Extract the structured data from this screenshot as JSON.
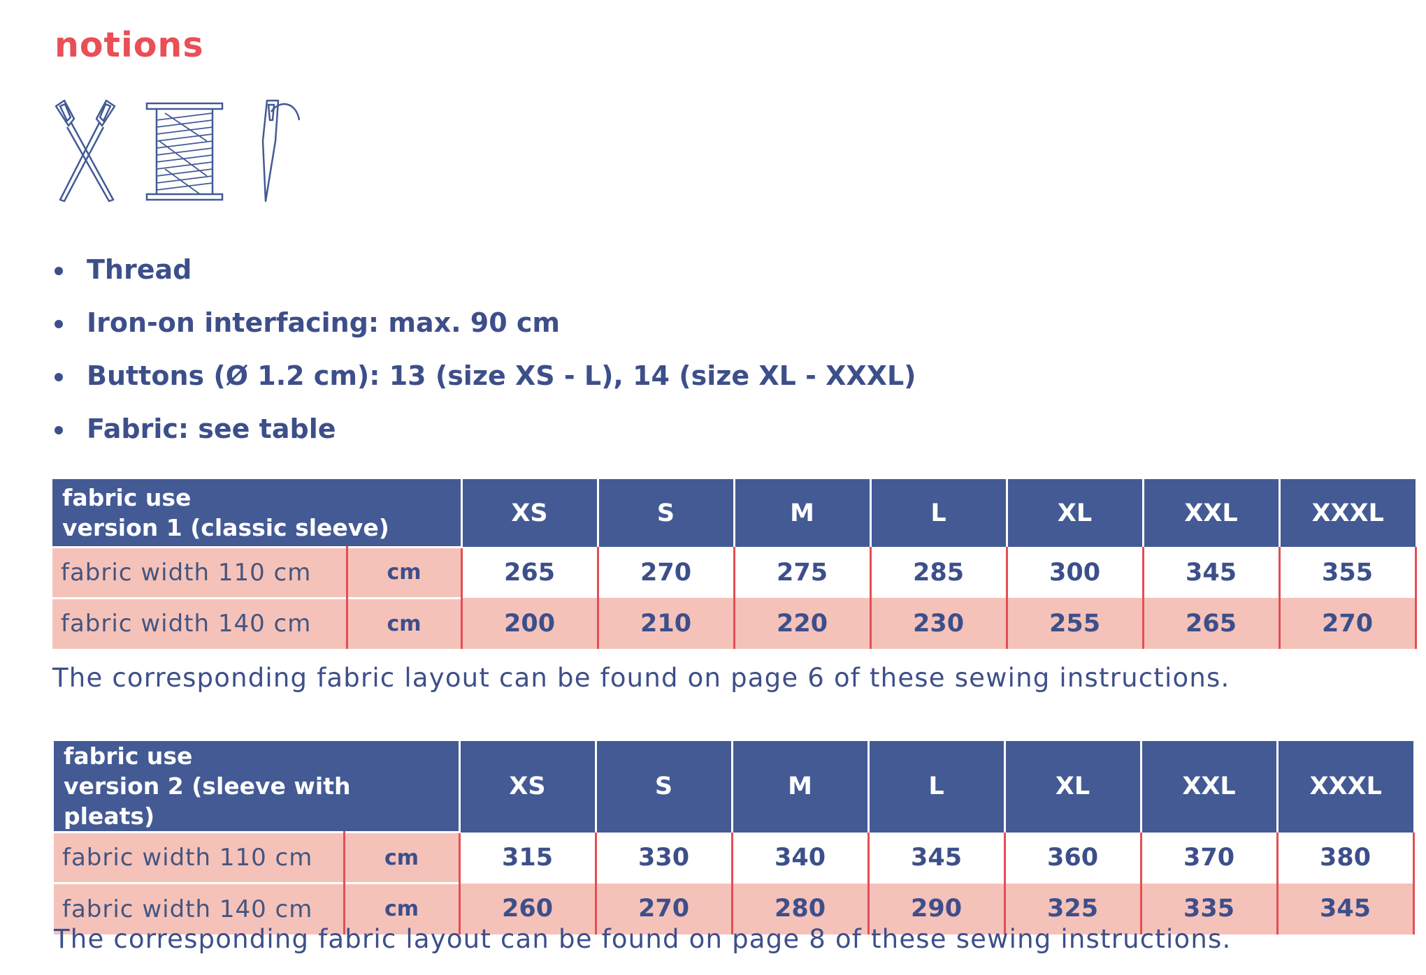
{
  "title": "notions",
  "icons": [
    "scissors-icon",
    "thread-spool-icon",
    "needle-icon"
  ],
  "notions": [
    "Thread",
    "Iron-on interfacing: max. 90 cm",
    "Buttons (Ø 1.2 cm): 13 (size XS - L), 14 (size XL - XXXL)",
    "Fabric: see table"
  ],
  "tables": [
    {
      "header_line1": "fabric use",
      "header_line2": "version 1 (classic sleeve)",
      "sizes": [
        "XS",
        "S",
        "M",
        "L",
        "XL",
        "XXL",
        "XXXL"
      ],
      "rows": [
        {
          "label": "fabric width 110 cm",
          "unit": "cm",
          "values": [
            "265",
            "270",
            "275",
            "285",
            "300",
            "345",
            "355"
          ]
        },
        {
          "label": "fabric width 140 cm",
          "unit": "cm",
          "values": [
            "200",
            "210",
            "220",
            "230",
            "255",
            "265",
            "270"
          ]
        }
      ],
      "note": "The corresponding fabric layout can be found on page 6 of these sewing instructions."
    },
    {
      "header_line1": "fabric use",
      "header_line2": "version 2 (sleeve with pleats)",
      "sizes": [
        "XS",
        "S",
        "M",
        "L",
        "XL",
        "XXL",
        "XXXL"
      ],
      "rows": [
        {
          "label": "fabric width 110 cm",
          "unit": "cm",
          "values": [
            "315",
            "330",
            "340",
            "345",
            "360",
            "370",
            "380"
          ]
        },
        {
          "label": "fabric width 140 cm",
          "unit": "cm",
          "values": [
            "260",
            "270",
            "280",
            "290",
            "325",
            "335",
            "345"
          ]
        }
      ],
      "note": "The corresponding fabric layout can be found on page 8 of these sewing instructions."
    }
  ],
  "colors": {
    "accent": "#ea4e56",
    "header_blue": "#435a94",
    "text_blue": "#3d4f8a",
    "row_pink": "#f5c2ba",
    "divider_red": "#e44d55"
  }
}
